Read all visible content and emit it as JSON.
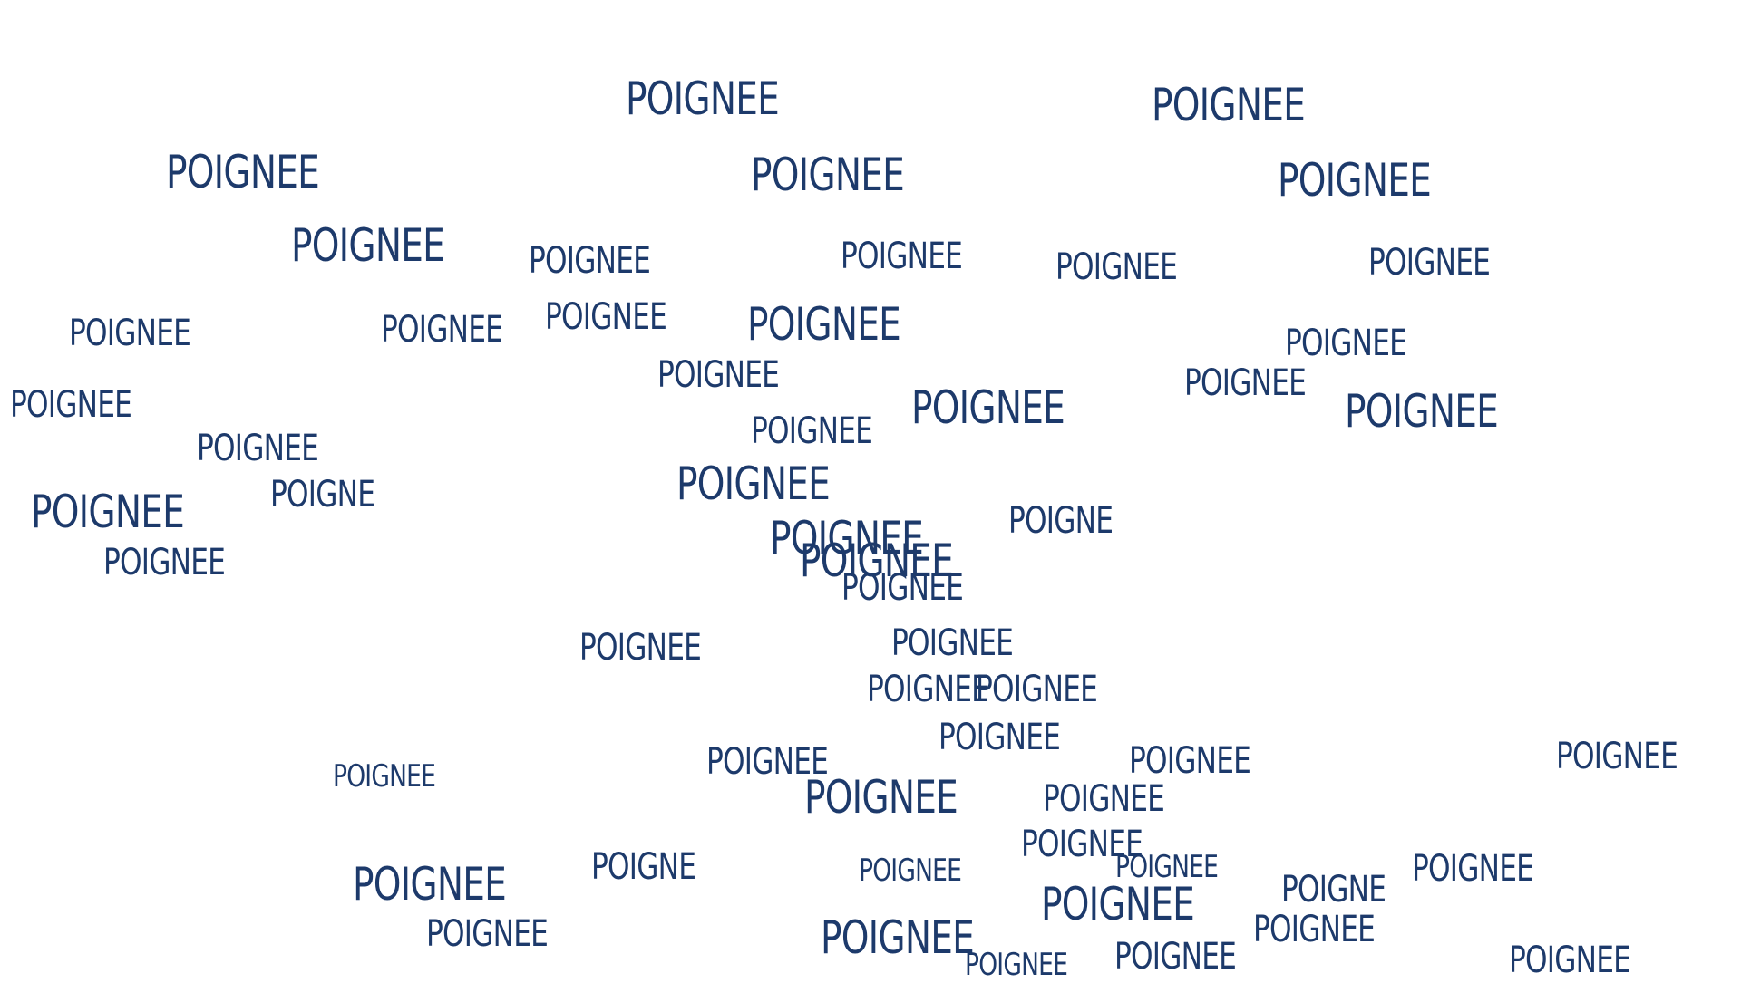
{
  "words": [
    "POIGNEE",
    "POIGNEE",
    "POIGNEE",
    "POIGNEE",
    "POIGNEE",
    "POIGNEE",
    "POIGNEE",
    "POIGNEE",
    "POIGNEE",
    "POIGNEE",
    "POIGNEE",
    "POIGNEE",
    "POIGNEE",
    "POIGNEE",
    "POIGNEE",
    "POIGNEE",
    "POIGNEE",
    "POIGNEE",
    "POIGNEE",
    "POIGNEE",
    "POIGNEE",
    "POIGNEE",
    "POIGNE",
    "POIGNEE",
    "POIGNEE",
    "POIGNE",
    "POIGNEE",
    "POIGNEE",
    "POIGNEE",
    "POIGNEE",
    "POIGNEE",
    "POIGNEE",
    "POIGNEE",
    "POIGNEE",
    "POIGNEE",
    "POIGNEE",
    "POIGNEE",
    "POIGNEE",
    "POIGNEE",
    "POIGNEE",
    "POIGNEE",
    "POIGNEE",
    "POIGNEE",
    "POIGNE",
    "POIGNEE",
    "POIGNEE",
    "POIGNE",
    "POIGNEE",
    "POIGNEE",
    "POIGNEE",
    "POIGNEE",
    "POIGNEE",
    "POIGNEE",
    "POIGNEE",
    "POIGNEE"
  ]
}
